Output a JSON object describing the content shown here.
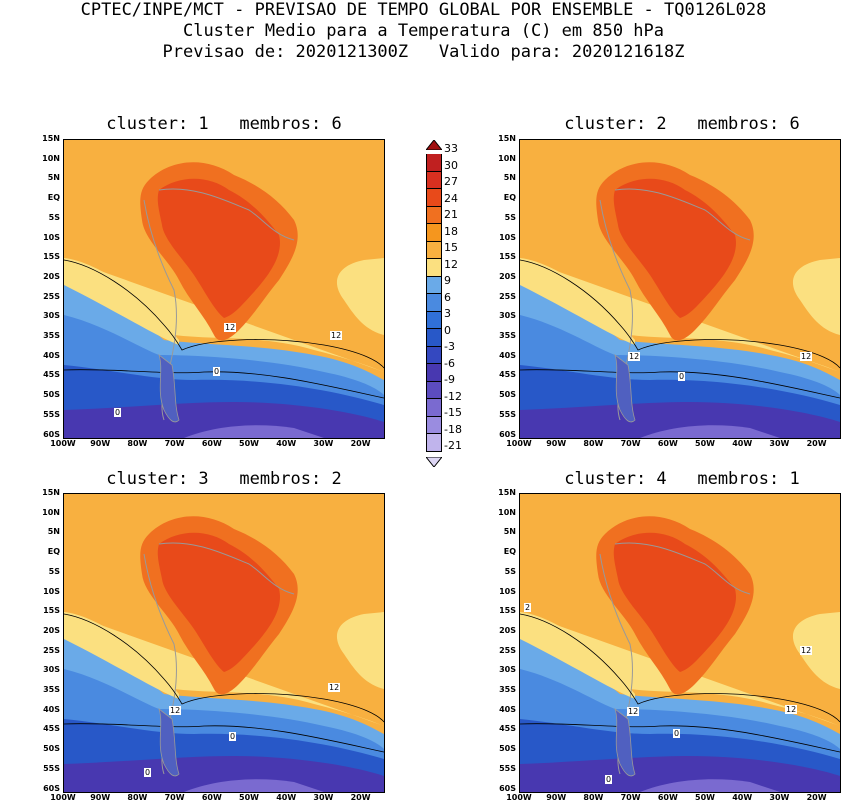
{
  "header": {
    "line1": "CPTEC/INPE/MCT - PREVISAO DE TEMPO GLOBAL POR ENSEMBLE - TQ0126L028",
    "line2": "Cluster Medio para a Temperatura (C) em 850 hPa",
    "line3": "Previsao de: 2020121300Z   Valido para: 2020121618Z"
  },
  "panels": [
    {
      "title": "cluster: 1   membros: 6"
    },
    {
      "title": "cluster: 2   membros: 6"
    },
    {
      "title": "cluster: 3   membros: 2"
    },
    {
      "title": "cluster: 4   membros: 1"
    }
  ],
  "lat_labels": [
    "15N",
    "10N",
    "5N",
    "EQ",
    "5S",
    "10S",
    "15S",
    "20S",
    "25S",
    "30S",
    "35S",
    "40S",
    "45S",
    "50S",
    "55S",
    "60S"
  ],
  "lon_labels": [
    "100W",
    "90W",
    "80W",
    "70W",
    "60W",
    "50W",
    "40W",
    "30W",
    "20W"
  ],
  "colorbar": {
    "labels": [
      "33",
      "30",
      "27",
      "24",
      "21",
      "18",
      "15",
      "12",
      "9",
      "6",
      "3",
      "0",
      "-3",
      "-6",
      "-9",
      "-12",
      "-15",
      "-18",
      "-21"
    ],
    "colors": [
      "#a01010",
      "#c02020",
      "#d83020",
      "#e84a1a",
      "#f07020",
      "#f5961e",
      "#f8b040",
      "#fbe080",
      "#6aaae8",
      "#4a8ae0",
      "#3070d8",
      "#2858c8",
      "#3448c0",
      "#4838b0",
      "#5c4cc0",
      "#7a6ad0",
      "#9a8ce0",
      "#c0b4ec",
      "#ddd6f4"
    ]
  },
  "contour_labels": {
    "panel1": [
      "12",
      "12",
      "0",
      "0"
    ],
    "panel2": [
      "12",
      "12",
      "0",
      "0"
    ],
    "panel3": [
      "12",
      "12",
      "0",
      "0"
    ],
    "panel4": [
      "2",
      "12",
      "12",
      "12",
      "0",
      "0"
    ]
  }
}
